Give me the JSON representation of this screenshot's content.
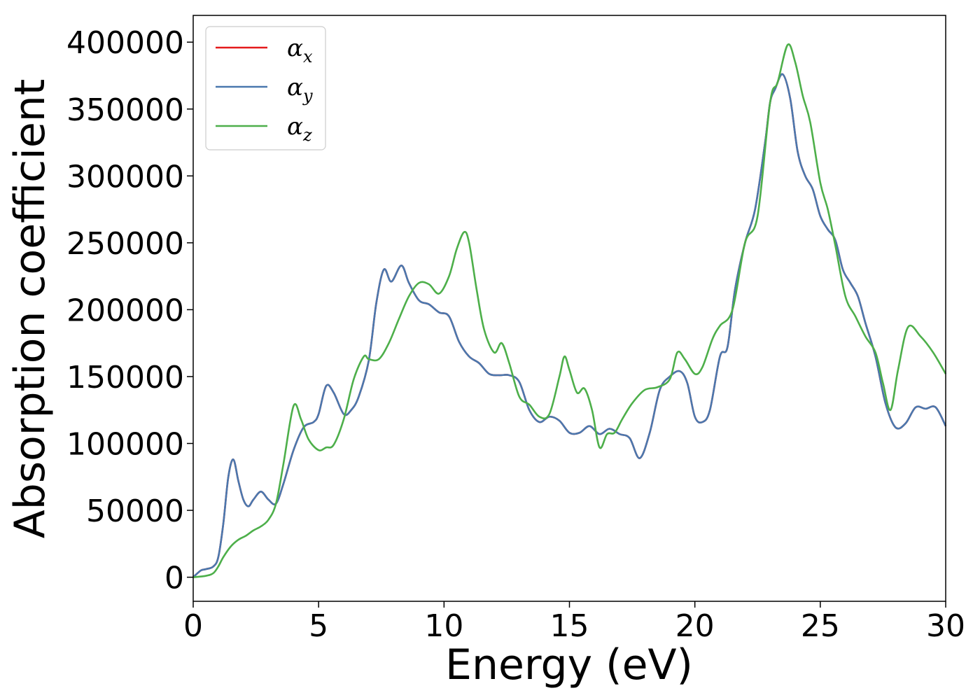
{
  "chart_data": {
    "type": "line",
    "title": "",
    "xlabel": "Energy (eV)",
    "ylabel": "Absorption coefficient",
    "xlim": [
      0,
      30
    ],
    "ylim": [
      -18000,
      420000
    ],
    "xticks": [
      0,
      5,
      10,
      15,
      20,
      25,
      30
    ],
    "yticks": [
      0,
      50000,
      100000,
      150000,
      200000,
      250000,
      300000,
      350000,
      400000
    ],
    "grid": false,
    "legend_position": "top-left",
    "series": [
      {
        "name": "α",
        "subscript": "x",
        "color": "#e41a1c",
        "x": [
          0,
          0.3,
          0.5,
          0.8,
          1.0,
          1.2,
          1.4,
          1.6,
          1.8,
          2.0,
          2.2,
          2.4,
          2.7,
          3.0,
          3.3,
          3.6,
          4.0,
          4.4,
          4.8,
          5.0,
          5.3,
          5.6,
          6.0,
          6.3,
          6.6,
          7.0,
          7.3,
          7.6,
          7.9,
          8.3,
          8.6,
          9.0,
          9.4,
          9.8,
          10.2,
          10.6,
          11.0,
          11.4,
          11.8,
          12.2,
          12.6,
          13.0,
          13.4,
          13.8,
          14.2,
          14.6,
          15.0,
          15.4,
          15.8,
          16.2,
          16.6,
          17.0,
          17.4,
          17.8,
          18.2,
          18.6,
          19.0,
          19.4,
          19.7,
          20.0,
          20.3,
          20.6,
          21.0,
          21.3,
          21.6,
          22.0,
          22.4,
          22.8,
          23.0,
          23.2,
          23.5,
          23.8,
          24.1,
          24.4,
          24.7,
          25.0,
          25.3,
          25.6,
          25.9,
          26.2,
          26.5,
          26.8,
          27.2,
          27.6,
          28.0,
          28.4,
          28.8,
          29.2,
          29.6,
          30.0
        ],
        "values": [
          0,
          5000,
          6000,
          8000,
          15000,
          40000,
          75000,
          88000,
          72000,
          58000,
          53000,
          58000,
          64000,
          58000,
          55000,
          70000,
          95000,
          112000,
          116000,
          122000,
          143000,
          138000,
          122000,
          125000,
          135000,
          162000,
          205000,
          230000,
          221000,
          233000,
          220000,
          207000,
          204000,
          198000,
          195000,
          176000,
          165000,
          160000,
          152000,
          151000,
          151000,
          146000,
          125000,
          116000,
          120000,
          117000,
          108000,
          108000,
          113000,
          107000,
          111000,
          107000,
          104000,
          89000,
          108000,
          140000,
          150000,
          154000,
          145000,
          120000,
          116000,
          125000,
          165000,
          172000,
          215000,
          250000,
          275000,
          325000,
          355000,
          365000,
          376000,
          358000,
          318000,
          300000,
          290000,
          270000,
          260000,
          252000,
          230000,
          220000,
          210000,
          190000,
          165000,
          130000,
          112000,
          115000,
          127000,
          126000,
          127000,
          113000
        ]
      },
      {
        "name": "α",
        "subscript": "y",
        "color": "#4a78ae",
        "x": [
          0,
          0.3,
          0.5,
          0.8,
          1.0,
          1.2,
          1.4,
          1.6,
          1.8,
          2.0,
          2.2,
          2.4,
          2.7,
          3.0,
          3.3,
          3.6,
          4.0,
          4.4,
          4.8,
          5.0,
          5.3,
          5.6,
          6.0,
          6.3,
          6.6,
          7.0,
          7.3,
          7.6,
          7.9,
          8.3,
          8.6,
          9.0,
          9.4,
          9.8,
          10.2,
          10.6,
          11.0,
          11.4,
          11.8,
          12.2,
          12.6,
          13.0,
          13.4,
          13.8,
          14.2,
          14.6,
          15.0,
          15.4,
          15.8,
          16.2,
          16.6,
          17.0,
          17.4,
          17.8,
          18.2,
          18.6,
          19.0,
          19.4,
          19.7,
          20.0,
          20.3,
          20.6,
          21.0,
          21.3,
          21.6,
          22.0,
          22.4,
          22.8,
          23.0,
          23.2,
          23.5,
          23.8,
          24.1,
          24.4,
          24.7,
          25.0,
          25.3,
          25.6,
          25.9,
          26.2,
          26.5,
          26.8,
          27.2,
          27.6,
          28.0,
          28.4,
          28.8,
          29.2,
          29.6,
          30.0
        ],
        "values": [
          0,
          5000,
          6000,
          8000,
          15000,
          40000,
          75000,
          88000,
          72000,
          58000,
          53000,
          58000,
          64000,
          58000,
          55000,
          70000,
          95000,
          112000,
          116000,
          122000,
          143000,
          138000,
          122000,
          125000,
          135000,
          162000,
          205000,
          230000,
          221000,
          233000,
          220000,
          207000,
          204000,
          198000,
          195000,
          176000,
          165000,
          160000,
          152000,
          151000,
          151000,
          146000,
          125000,
          116000,
          120000,
          117000,
          108000,
          108000,
          113000,
          107000,
          111000,
          107000,
          104000,
          89000,
          108000,
          140000,
          150000,
          154000,
          145000,
          120000,
          116000,
          125000,
          165000,
          172000,
          215000,
          250000,
          275000,
          325000,
          355000,
          365000,
          376000,
          358000,
          318000,
          300000,
          290000,
          270000,
          260000,
          252000,
          230000,
          220000,
          210000,
          190000,
          165000,
          130000,
          112000,
          115000,
          127000,
          126000,
          127000,
          113000
        ]
      },
      {
        "name": "α",
        "subscript": "z",
        "color": "#4daf4a",
        "x": [
          0,
          0.5,
          0.8,
          1.0,
          1.2,
          1.5,
          1.8,
          2.1,
          2.4,
          2.7,
          3.0,
          3.3,
          3.6,
          4.0,
          4.3,
          4.6,
          5.0,
          5.3,
          5.6,
          6.0,
          6.4,
          6.8,
          7.0,
          7.4,
          7.8,
          8.2,
          8.6,
          9.0,
          9.4,
          9.8,
          10.2,
          10.5,
          10.8,
          11.0,
          11.3,
          11.6,
          12.0,
          12.3,
          12.6,
          13.0,
          13.4,
          13.8,
          14.2,
          14.6,
          14.8,
          15.0,
          15.3,
          15.6,
          15.9,
          16.2,
          16.5,
          16.8,
          17.1,
          17.5,
          18.0,
          18.5,
          19.0,
          19.3,
          19.6,
          20.0,
          20.3,
          20.7,
          21.0,
          21.5,
          22.0,
          22.5,
          23.0,
          23.3,
          23.7,
          24.0,
          24.3,
          24.6,
          25.0,
          25.3,
          25.6,
          26.0,
          26.4,
          26.8,
          27.2,
          27.5,
          27.8,
          28.1,
          28.5,
          29.0,
          29.5,
          30.0
        ],
        "values": [
          0,
          1000,
          3000,
          8000,
          15000,
          23000,
          28000,
          31000,
          35000,
          38000,
          43000,
          55000,
          85000,
          128000,
          118000,
          103000,
          95000,
          97000,
          99000,
          118000,
          148000,
          165000,
          163000,
          163000,
          175000,
          193000,
          210000,
          220000,
          219000,
          212000,
          225000,
          245000,
          258000,
          250000,
          215000,
          185000,
          168000,
          175000,
          160000,
          135000,
          129000,
          120000,
          122000,
          150000,
          165000,
          155000,
          138000,
          141000,
          125000,
          97000,
          107000,
          108000,
          118000,
          130000,
          140000,
          142000,
          148000,
          168000,
          163000,
          152000,
          157000,
          178000,
          188000,
          200000,
          250000,
          270000,
          355000,
          370000,
          398000,
          385000,
          360000,
          340000,
          295000,
          275000,
          248000,
          210000,
          195000,
          180000,
          168000,
          145000,
          125000,
          155000,
          187000,
          180000,
          168000,
          152000
        ]
      }
    ]
  }
}
